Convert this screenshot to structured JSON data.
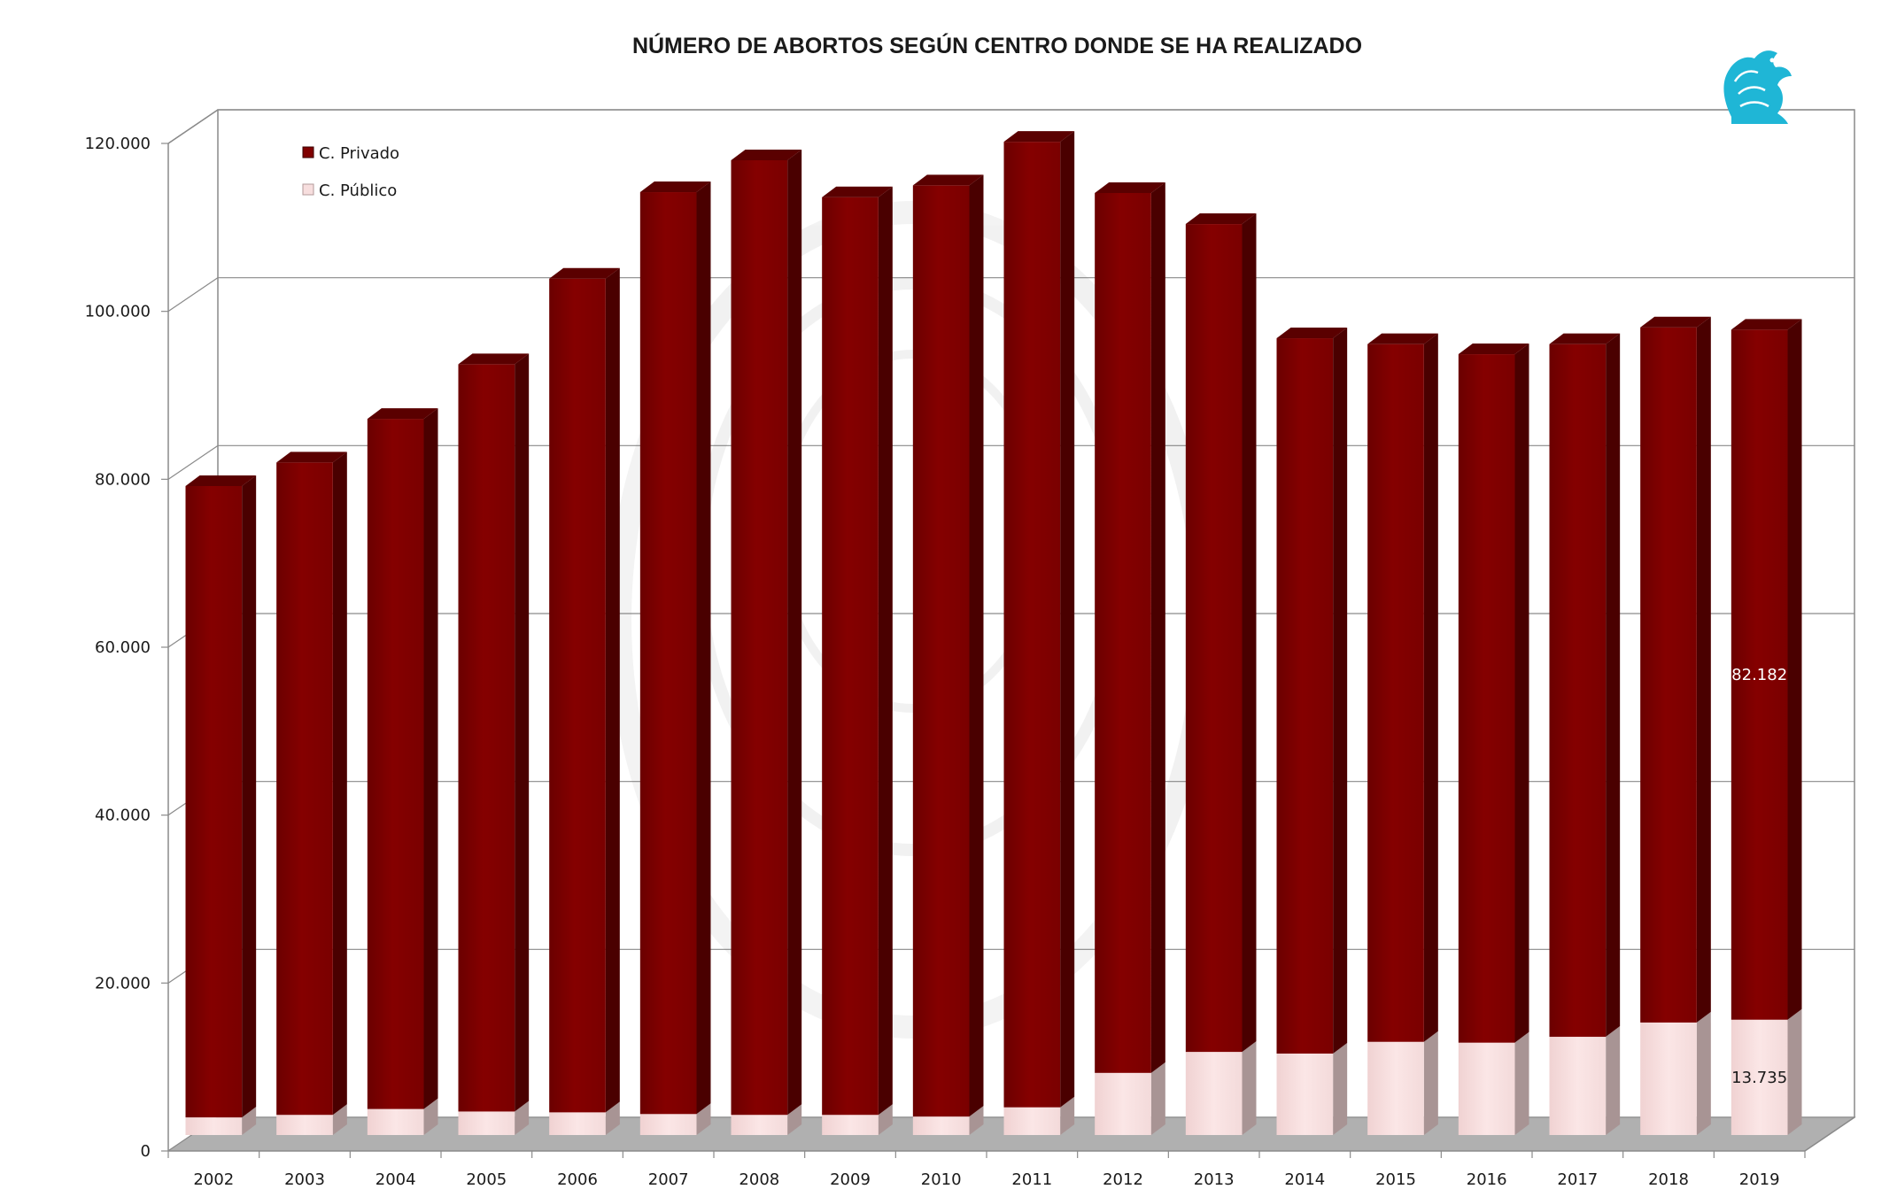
{
  "chart_data": {
    "type": "bar",
    "stacked": true,
    "three_d": true,
    "title": "NÚMERO DE ABORTOS SEGÚN CENTRO DONDE SE HA REALIZADO",
    "xlabel": "",
    "ylabel": "",
    "ylim": [
      0,
      120000
    ],
    "y_ticks": [
      "0",
      "20.000",
      "40.000",
      "60.000",
      "80.000",
      "100.000",
      "120.000"
    ],
    "grid": true,
    "legend_position": "top-left",
    "categories": [
      "2002",
      "2003",
      "2004",
      "2005",
      "2006",
      "2007",
      "2008",
      "2009",
      "2010",
      "2011",
      "2012",
      "2013",
      "2014",
      "2015",
      "2016",
      "2017",
      "2018",
      "2019"
    ],
    "series": [
      {
        "name": "C. Público",
        "color": "#f7dede",
        "values": [
          2100,
          2400,
          3100,
          2800,
          2700,
          2500,
          2400,
          2400,
          2200,
          3300,
          7400,
          9900,
          9700,
          11100,
          11000,
          11700,
          13400,
          13735
        ]
      },
      {
        "name": "C. Privado",
        "color": "#800000",
        "values": [
          75200,
          77700,
          82200,
          89000,
          99300,
          109800,
          113700,
          109300,
          110900,
          115000,
          104800,
          98600,
          85200,
          83100,
          82000,
          82500,
          82800,
          82182
        ]
      }
    ],
    "data_labels": [
      {
        "series": "C. Privado",
        "category": "2019",
        "text": "82.182"
      },
      {
        "series": "C. Público",
        "category": "2019",
        "text": "13.735"
      }
    ]
  },
  "logo": {
    "name": "griffin-logo",
    "color": "#1fb6d6"
  }
}
